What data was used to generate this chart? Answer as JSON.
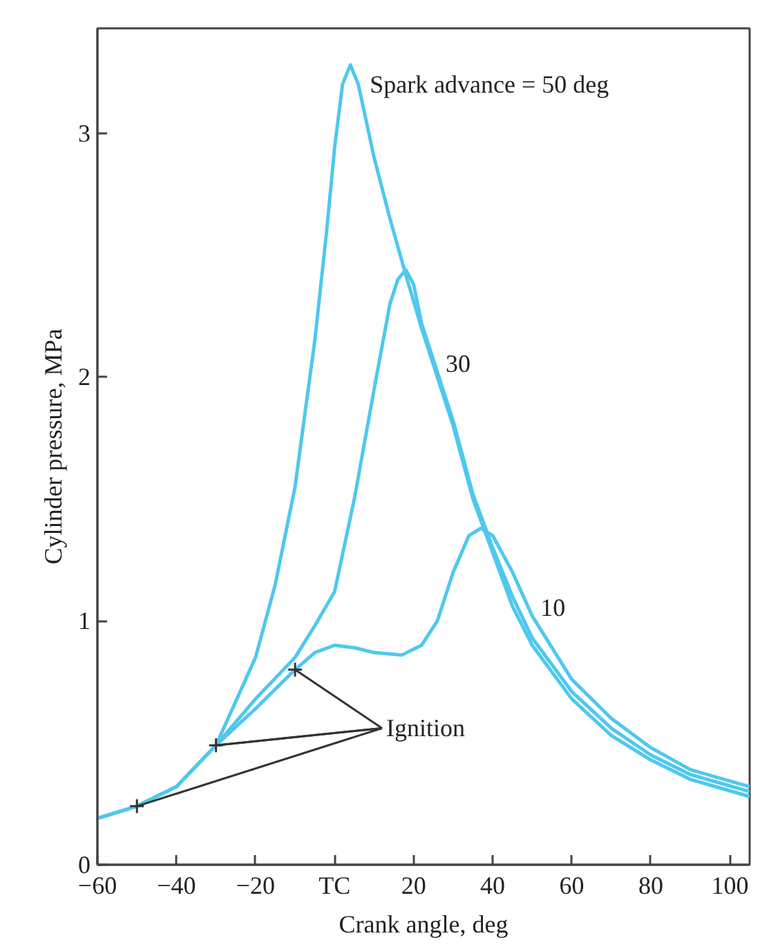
{
  "chart_data": {
    "type": "line",
    "xlabel": "Crank angle, deg",
    "ylabel": "Cylinder pressure, MPa",
    "xlim": [
      -60,
      105
    ],
    "ylim": [
      0,
      3.43
    ],
    "xticks": [
      -60,
      -40,
      -20,
      {
        "value": 0,
        "label": "TC"
      },
      20,
      40,
      60,
      80,
      100
    ],
    "yticks": [
      0,
      1,
      2,
      3
    ],
    "grid": false,
    "marker": "none",
    "line_style": "solid",
    "annotations": [
      {
        "text": "Ignition",
        "x": -30,
        "y": 0.49
      }
    ],
    "series": [
      {
        "name": "Spark advance = 50 deg",
        "color": "#4fc8ee",
        "x": [
          -60,
          -50,
          -40,
          -30,
          -20,
          -15,
          -10,
          -5,
          -2,
          0,
          2,
          4,
          6,
          8,
          10,
          14,
          18,
          22,
          26,
          30,
          35,
          40,
          45,
          50,
          60,
          70,
          80,
          90,
          105
        ],
        "values": [
          0.19,
          0.24,
          0.32,
          0.49,
          0.85,
          1.15,
          1.55,
          2.15,
          2.6,
          2.94,
          3.2,
          3.28,
          3.2,
          3.05,
          2.9,
          2.65,
          2.42,
          2.2,
          2.0,
          1.8,
          1.5,
          1.28,
          1.06,
          0.9,
          0.68,
          0.53,
          0.43,
          0.35,
          0.28
        ]
      },
      {
        "name": "30",
        "color": "#4fc8ee",
        "x": [
          -60,
          -50,
          -40,
          -30,
          -20,
          -10,
          -5,
          0,
          5,
          10,
          14,
          16,
          18,
          20,
          22,
          26,
          30,
          35,
          40,
          45,
          50,
          60,
          70,
          80,
          90,
          105
        ],
        "values": [
          0.19,
          0.24,
          0.32,
          0.49,
          0.68,
          0.85,
          0.98,
          1.12,
          1.5,
          1.95,
          2.3,
          2.4,
          2.44,
          2.38,
          2.22,
          2.02,
          1.82,
          1.52,
          1.3,
          1.1,
          0.93,
          0.71,
          0.56,
          0.45,
          0.37,
          0.3
        ]
      },
      {
        "name": "10",
        "color": "#4fc8ee",
        "x": [
          -60,
          -50,
          -40,
          -30,
          -20,
          -10,
          -5,
          0,
          5,
          10,
          17,
          22,
          26,
          30,
          34,
          37,
          40,
          45,
          50,
          60,
          70,
          80,
          90,
          105
        ],
        "values": [
          0.19,
          0.24,
          0.32,
          0.49,
          0.64,
          0.8,
          0.87,
          0.9,
          0.89,
          0.87,
          0.86,
          0.9,
          1.0,
          1.2,
          1.35,
          1.38,
          1.35,
          1.2,
          1.02,
          0.76,
          0.6,
          0.48,
          0.39,
          0.32
        ]
      },
      {
        "type": "scatter",
        "marker": "cross",
        "color": "#333333",
        "x": [
          -50,
          -30,
          -10
        ],
        "values": [
          0.24,
          0.49,
          0.8
        ]
      }
    ]
  }
}
